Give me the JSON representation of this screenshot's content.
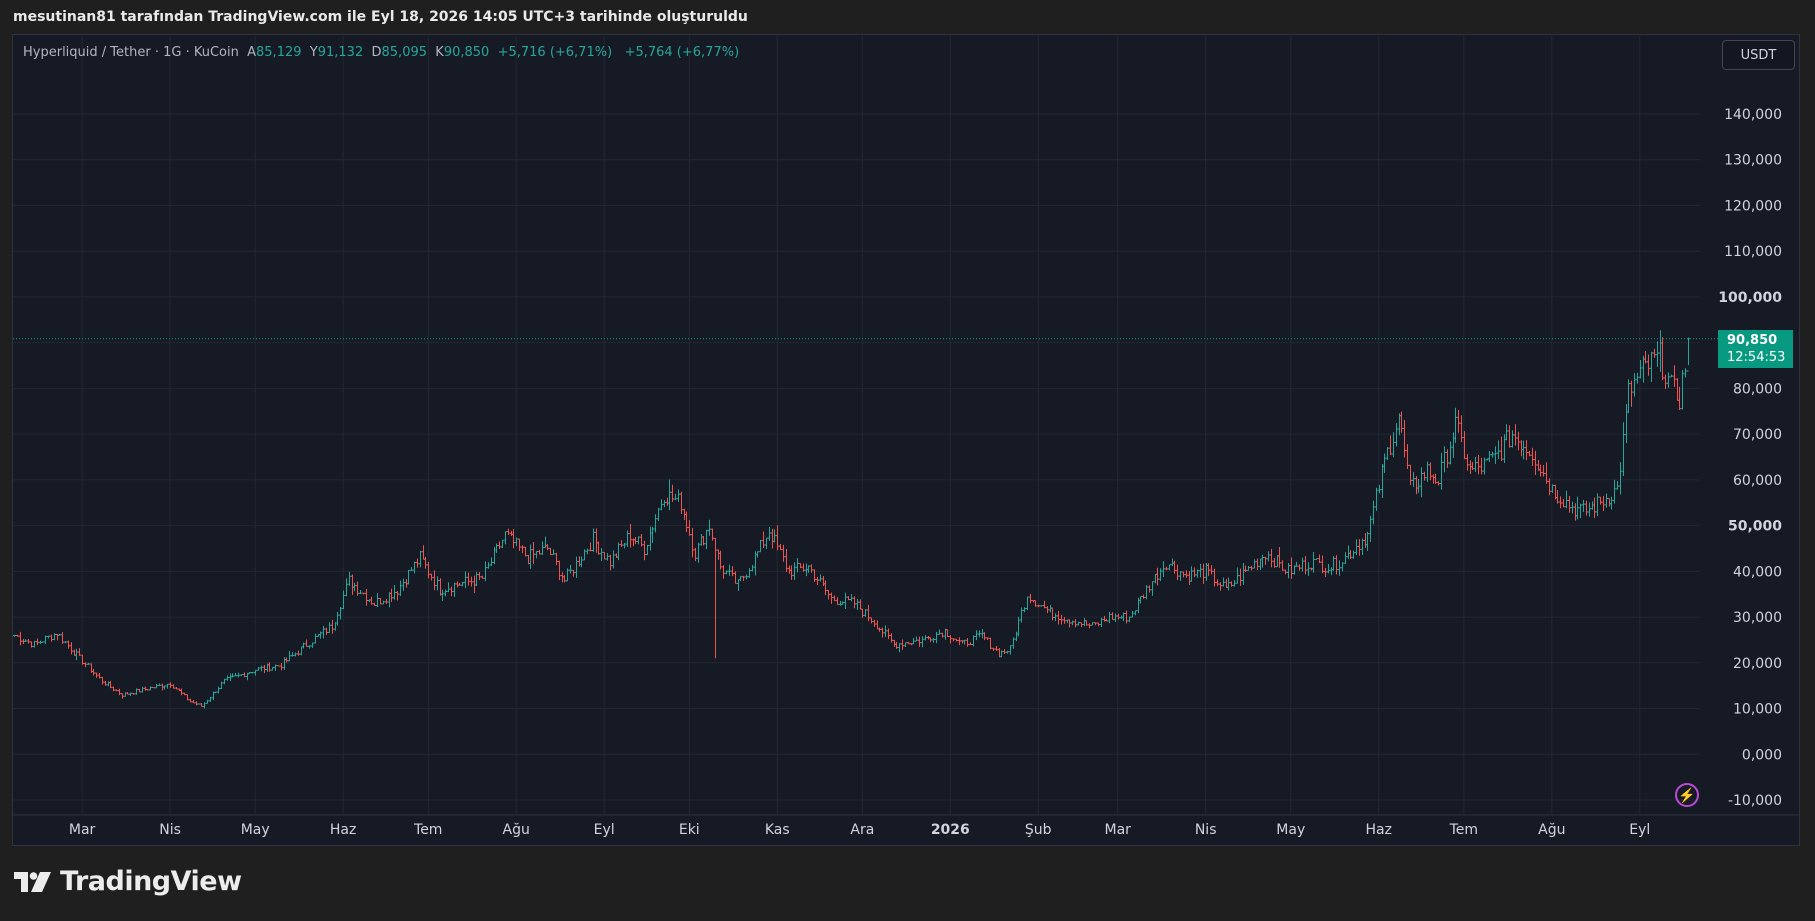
{
  "caption": "mesutinan81 tarafından TradingView.com ile Eyl 18, 2026 14:05 UTC+3 tarihinde oluşturuldu",
  "legend": {
    "symbol": "Hyperliquid / Tether · 1G · KuCoin",
    "open_label": "A",
    "open": "85,129",
    "high_label": "Y",
    "high": "91,132",
    "low_label": "D",
    "low": "85,095",
    "close_label": "K",
    "close": "90,850",
    "change1": "+5,716 (+6,71%)",
    "change2": "+5,764 (+6,77%)"
  },
  "currency": "USDT",
  "last_price": {
    "value": "90,850",
    "countdown": "12:54:53"
  },
  "footer": {
    "brand": "TradingView"
  },
  "colors": {
    "up": "#26a69a",
    "down": "#ef5350",
    "background": "#161a25",
    "grid": "#232733",
    "price_line": "#089981"
  },
  "icons": [
    "tradingview-logo-icon",
    "lightning-icon"
  ],
  "chart_data": {
    "type": "ohlc",
    "title": "Hyperliquid / Tether · 1G · KuCoin",
    "ylim": [
      -10000,
      150000
    ],
    "yticks": [
      "-10,000",
      "0,000",
      "10,000",
      "20,000",
      "30,000",
      "40,000",
      "50,000",
      "60,000",
      "70,000",
      "80,000",
      "90,000",
      "100,000",
      "110,000",
      "120,000",
      "130,000",
      "140,000"
    ],
    "bold_yticks": [
      "50,000",
      "100,000"
    ],
    "xticks": [
      "Mar",
      "Nis",
      "May",
      "Haz",
      "Tem",
      "Ağu",
      "Eyl",
      "Eki",
      "Kas",
      "Ara",
      "2026",
      "Şub",
      "Mar",
      "Nis",
      "May",
      "Haz",
      "Tem",
      "Ağu",
      "Eyl"
    ],
    "bold_xticks": [
      "2026"
    ],
    "grid": true,
    "last_close": 90850,
    "keypoints": [
      {
        "date": "2025-02-05",
        "close": 26000
      },
      {
        "date": "2025-02-12",
        "close": 24000
      },
      {
        "date": "2025-02-20",
        "close": 26500
      },
      {
        "date": "2025-02-28",
        "close": 21000
      },
      {
        "date": "2025-03-08",
        "close": 16000
      },
      {
        "date": "2025-03-15",
        "close": 13000
      },
      {
        "date": "2025-03-25",
        "close": 14500
      },
      {
        "date": "2025-04-01",
        "close": 15500
      },
      {
        "date": "2025-04-08",
        "close": 11500
      },
      {
        "date": "2025-04-12",
        "close": 10500
      },
      {
        "date": "2025-04-20",
        "close": 16000
      },
      {
        "date": "2025-05-01",
        "close": 18500
      },
      {
        "date": "2025-05-10",
        "close": 19500
      },
      {
        "date": "2025-05-20",
        "close": 24500
      },
      {
        "date": "2025-05-28",
        "close": 28000
      },
      {
        "date": "2025-06-03",
        "close": 38000
      },
      {
        "date": "2025-06-12",
        "close": 33000
      },
      {
        "date": "2025-06-20",
        "close": 36000
      },
      {
        "date": "2025-06-28",
        "close": 43000
      },
      {
        "date": "2025-07-05",
        "close": 36000
      },
      {
        "date": "2025-07-10",
        "close": 37000
      },
      {
        "date": "2025-07-20",
        "close": 38500
      },
      {
        "date": "2025-07-28",
        "close": 48000
      },
      {
        "date": "2025-08-05",
        "close": 43000
      },
      {
        "date": "2025-08-12",
        "close": 45000
      },
      {
        "date": "2025-08-18",
        "close": 38000
      },
      {
        "date": "2025-08-28",
        "close": 47000
      },
      {
        "date": "2025-09-03",
        "close": 42000
      },
      {
        "date": "2025-09-10",
        "close": 48000
      },
      {
        "date": "2025-09-15",
        "close": 45000
      },
      {
        "date": "2025-09-22",
        "close": 57000
      },
      {
        "date": "2025-09-28",
        "close": 55000
      },
      {
        "date": "2025-10-03",
        "close": 44000
      },
      {
        "date": "2025-10-08",
        "close": 50000
      },
      {
        "date": "2025-10-12",
        "close": 41000
      },
      {
        "date": "2025-10-18",
        "close": 37000
      },
      {
        "date": "2025-10-25",
        "close": 44000
      },
      {
        "date": "2025-10-29",
        "close": 49000
      },
      {
        "date": "2025-11-05",
        "close": 40000
      },
      {
        "date": "2025-11-12",
        "close": 41000
      },
      {
        "date": "2025-11-20",
        "close": 34000
      },
      {
        "date": "2025-11-28",
        "close": 33000
      },
      {
        "date": "2025-12-05",
        "close": 29000
      },
      {
        "date": "2025-12-12",
        "close": 24000
      },
      {
        "date": "2025-12-22",
        "close": 25000
      },
      {
        "date": "2025-12-30",
        "close": 27000
      },
      {
        "date": "2026-01-05",
        "close": 24000
      },
      {
        "date": "2026-01-12",
        "close": 26000
      },
      {
        "date": "2026-01-18",
        "close": 22000
      },
      {
        "date": "2026-01-22",
        "close": 23000
      },
      {
        "date": "2026-01-28",
        "close": 35000
      },
      {
        "date": "2026-02-05",
        "close": 31000
      },
      {
        "date": "2026-02-12",
        "close": 29500
      },
      {
        "date": "2026-02-20",
        "close": 28000
      },
      {
        "date": "2026-02-26",
        "close": 30000
      },
      {
        "date": "2026-03-05",
        "close": 30000
      },
      {
        "date": "2026-03-12",
        "close": 37000
      },
      {
        "date": "2026-03-18",
        "close": 42000
      },
      {
        "date": "2026-03-25",
        "close": 39000
      },
      {
        "date": "2026-04-01",
        "close": 40000
      },
      {
        "date": "2026-04-08",
        "close": 36000
      },
      {
        "date": "2026-04-15",
        "close": 40000
      },
      {
        "date": "2026-04-22",
        "close": 44000
      },
      {
        "date": "2026-04-30",
        "close": 40000
      },
      {
        "date": "2026-05-08",
        "close": 42000
      },
      {
        "date": "2026-05-15",
        "close": 41000
      },
      {
        "date": "2026-05-20",
        "close": 43000
      },
      {
        "date": "2026-05-28",
        "close": 48000
      },
      {
        "date": "2026-06-03",
        "close": 64000
      },
      {
        "date": "2026-06-08",
        "close": 74000
      },
      {
        "date": "2026-06-12",
        "close": 58000
      },
      {
        "date": "2026-06-18",
        "close": 62000
      },
      {
        "date": "2026-06-22",
        "close": 60000
      },
      {
        "date": "2026-06-28",
        "close": 72000
      },
      {
        "date": "2026-07-03",
        "close": 62000
      },
      {
        "date": "2026-07-08",
        "close": 63000
      },
      {
        "date": "2026-07-12",
        "close": 65000
      },
      {
        "date": "2026-07-18",
        "close": 70000
      },
      {
        "date": "2026-07-25",
        "close": 66000
      },
      {
        "date": "2026-08-01",
        "close": 58000
      },
      {
        "date": "2026-08-08",
        "close": 54000
      },
      {
        "date": "2026-08-12",
        "close": 53000
      },
      {
        "date": "2026-08-18",
        "close": 55000
      },
      {
        "date": "2026-08-24",
        "close": 58000
      },
      {
        "date": "2026-08-28",
        "close": 79000
      },
      {
        "date": "2026-09-02",
        "close": 84000
      },
      {
        "date": "2026-09-08",
        "close": 87000
      },
      {
        "date": "2026-09-12",
        "close": 80000
      },
      {
        "date": "2026-09-15",
        "close": 78000
      },
      {
        "date": "2026-09-17",
        "close": 85129
      },
      {
        "date": "2026-09-18",
        "close": 90850
      }
    ]
  }
}
